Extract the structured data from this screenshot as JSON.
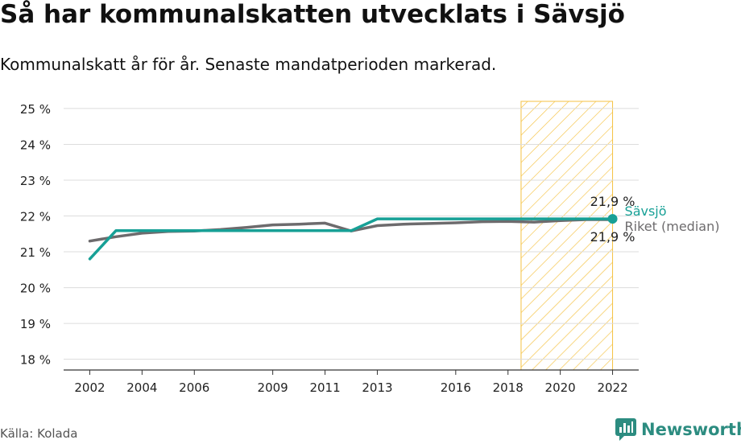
{
  "title": "Så har kommunalskatten utvecklats i Sävsjö",
  "subtitle": "Kommunalskatt år för år. Senaste mandatperioden markerad.",
  "source": "Källa: Kolada",
  "brand": "Newsworthy",
  "colors": {
    "savsjo": "#17a096",
    "riket": "#6d6b6d",
    "highlight": "#f5c242",
    "grid": "#dcdcdc"
  },
  "chart_data": {
    "type": "line",
    "title": "Så har kommunalskatten utvecklats i Sävsjö",
    "subtitle": "Kommunalskatt år för år. Senaste mandatperioden markerad.",
    "xlim": [
      2001,
      2023
    ],
    "ylim": [
      17.7,
      25.2
    ],
    "y_ticks": [
      18,
      19,
      20,
      21,
      22,
      23,
      24,
      25
    ],
    "y_tick_labels": [
      "18 %",
      "19 %",
      "20 %",
      "21 %",
      "22 %",
      "23 %",
      "24 %",
      "25 %"
    ],
    "x_ticks": [
      2002,
      2004,
      2006,
      2009,
      2011,
      2013,
      2016,
      2018,
      2020,
      2022
    ],
    "x_tick_labels": [
      "2002",
      "2004",
      "2006",
      "2009",
      "2011",
      "2013",
      "2016",
      "2018",
      "2020",
      "2022"
    ],
    "highlight_range": [
      2018.5,
      2022
    ],
    "grid": true,
    "series": [
      {
        "name": "Riket (median)",
        "color": "#6d6b6d",
        "end_label": "21,9 %",
        "x": [
          2002,
          2003,
          2004,
          2005,
          2006,
          2007,
          2008,
          2009,
          2010,
          2011,
          2012,
          2013,
          2014,
          2015,
          2016,
          2017,
          2018,
          2019,
          2020,
          2021,
          2022
        ],
        "y": [
          21.3,
          21.42,
          21.52,
          21.57,
          21.58,
          21.62,
          21.68,
          21.75,
          21.77,
          21.8,
          21.58,
          21.73,
          21.77,
          21.79,
          21.81,
          21.84,
          21.85,
          21.83,
          21.87,
          21.9,
          21.9
        ]
      },
      {
        "name": "Sävsjö",
        "color": "#17a096",
        "end_label": "21,9 %",
        "x": [
          2002,
          2003,
          2004,
          2005,
          2006,
          2007,
          2008,
          2009,
          2010,
          2011,
          2012,
          2013,
          2014,
          2015,
          2016,
          2017,
          2018,
          2019,
          2020,
          2021,
          2022
        ],
        "y": [
          20.8,
          21.59,
          21.59,
          21.59,
          21.59,
          21.59,
          21.59,
          21.59,
          21.59,
          21.59,
          21.59,
          21.92,
          21.92,
          21.92,
          21.92,
          21.92,
          21.92,
          21.92,
          21.92,
          21.92,
          21.92
        ]
      }
    ]
  }
}
